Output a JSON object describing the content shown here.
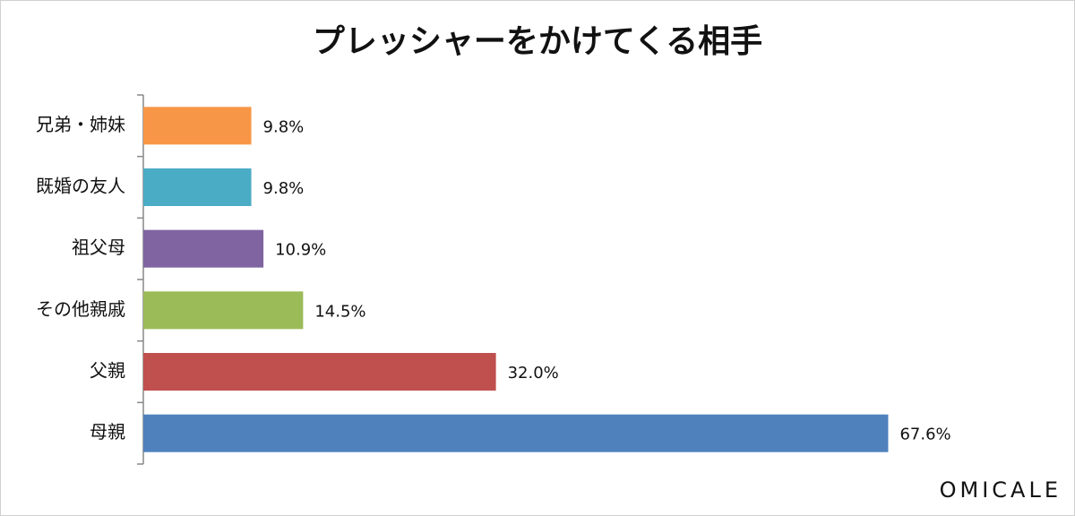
{
  "chart_data": {
    "type": "hbar",
    "title": "プレッシャーをかけてくる相手",
    "categories": [
      "兄弟・姉妹",
      "既婚の友人",
      "祖父母",
      "その他親戚",
      "父親",
      "母親"
    ],
    "values": [
      9.8,
      9.8,
      10.9,
      14.5,
      32.0,
      67.6
    ],
    "value_labels": [
      "9.8%",
      "9.8%",
      "10.9%",
      "14.5%",
      "32.0%",
      "67.6%"
    ],
    "colors": [
      "#f79646",
      "#4bacc6",
      "#8064a2",
      "#9bbb59",
      "#c0504d",
      "#4f81bd"
    ],
    "xlim": [
      0,
      80
    ]
  },
  "brand": "OMICALE"
}
